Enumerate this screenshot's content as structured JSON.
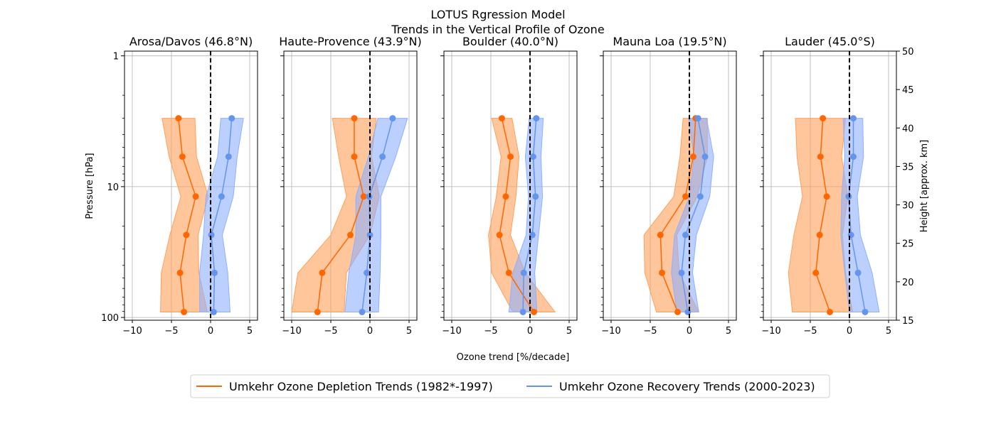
{
  "colors": {
    "depletion_line": "#ff6600",
    "depletion_band": "#ffa05a",
    "recovery_line": "#6495ed",
    "recovery_band": "#8fb0ff",
    "grid": "#b0b0b0",
    "zero_line": "#000000"
  },
  "chart_data": {
    "type": "line",
    "title_line1": "LOTUS Rgression Model",
    "title_line2": "Trends in the Vertical Profile of Ozone",
    "xlabel": "Ozone trend [%/decade]",
    "ylabel_left": "Pressure [hPa]",
    "ylabel_right": "Height [approx. km]",
    "xlim": [
      -11,
      6
    ],
    "xticks": [
      -10,
      -5,
      0,
      5
    ],
    "xtick_labels": [
      "−10",
      "−5",
      "0",
      "5"
    ],
    "y_scale": "log",
    "ylim_hpa": [
      105,
      0.92
    ],
    "yticks_hpa": [
      1,
      10,
      100
    ],
    "ytick_labels": [
      "1",
      "10",
      "100"
    ],
    "right_axis_km_ticks": [
      15,
      20,
      25,
      30,
      35,
      40,
      45,
      50
    ],
    "levels_hpa": [
      3.0,
      5.9,
      11.9,
      23.4,
      45.6,
      90.9
    ],
    "legend": {
      "depletion": "Umkehr Ozone Depletion Trends (1982*-1997)",
      "recovery": "Umkehr Ozone Recovery Trends (2000-2023)"
    },
    "stations": [
      {
        "name": "Arosa/Davos (46.8°N)",
        "depletion": {
          "values": [
            -4.1,
            -3.6,
            -1.9,
            -3.1,
            -3.9,
            -3.4
          ],
          "low": [
            -6.2,
            -5.3,
            -3.8,
            -5.2,
            -6.3,
            -6.4
          ],
          "high": [
            -2.0,
            -1.8,
            -0.3,
            -1.6,
            -1.5,
            -0.4
          ]
        },
        "recovery": {
          "values": [
            2.7,
            2.3,
            1.4,
            0.1,
            0.5,
            0.4
          ],
          "low": [
            1.3,
            0.9,
            -0.6,
            -0.9,
            -1.4,
            -1.4
          ],
          "high": [
            4.2,
            3.4,
            2.9,
            1.5,
            2.2,
            2.5
          ]
        }
      },
      {
        "name": "Haute-Provence (43.9°N)",
        "depletion": {
          "values": [
            -2.0,
            -2.0,
            -0.8,
            -2.5,
            -6.1,
            -6.7
          ],
          "low": [
            -4.8,
            -4.0,
            -3.0,
            -5.0,
            -9.2,
            -10.0
          ],
          "high": [
            0.8,
            0.2,
            1.2,
            0.0,
            -3.0,
            -3.3
          ]
        },
        "recovery": {
          "values": [
            2.9,
            1.6,
            -0.1,
            0.0,
            -0.4,
            -1.0
          ],
          "low": [
            1.0,
            -0.2,
            -1.8,
            -1.8,
            -2.7,
            -3.2
          ],
          "high": [
            4.8,
            3.3,
            1.4,
            1.4,
            1.3,
            1.1
          ]
        }
      },
      {
        "name": "Boulder (40.0°N)",
        "depletion": {
          "values": [
            -3.6,
            -2.5,
            -3.1,
            -3.9,
            -2.7,
            0.5
          ],
          "low": [
            -4.9,
            -3.7,
            -4.3,
            -5.3,
            -4.9,
            -2.2
          ],
          "high": [
            -2.3,
            -1.4,
            -1.8,
            -2.5,
            -0.6,
            3.2
          ]
        },
        "recovery": {
          "values": [
            0.8,
            0.4,
            0.7,
            0.3,
            -0.8,
            -0.9
          ],
          "low": [
            -0.1,
            -0.6,
            -0.2,
            -0.5,
            -2.2,
            -2.7
          ],
          "high": [
            1.7,
            1.4,
            1.6,
            1.1,
            0.6,
            0.9
          ]
        }
      },
      {
        "name": "Mauna Loa (19.5°N)",
        "depletion": {
          "values": [
            0.8,
            0.5,
            -0.5,
            -3.7,
            -3.5,
            -1.5
          ],
          "low": [
            -0.8,
            -1.2,
            -2.0,
            -5.8,
            -5.7,
            -4.2
          ],
          "high": [
            2.3,
            2.3,
            1.0,
            -1.6,
            -1.3,
            1.2
          ]
        },
        "recovery": {
          "values": [
            1.1,
            2.0,
            1.4,
            -0.5,
            -1.0,
            -0.2
          ],
          "low": [
            -0.1,
            0.6,
            0.0,
            -1.9,
            -2.3,
            -1.6
          ],
          "high": [
            2.2,
            3.1,
            2.6,
            0.9,
            0.4,
            1.2
          ]
        }
      },
      {
        "name": "Lauder (45.0°S)",
        "depletion": {
          "values": [
            -3.4,
            -3.7,
            -2.9,
            -3.8,
            -4.3,
            -2.5
          ],
          "low": [
            -6.9,
            -6.7,
            -6.0,
            -7.1,
            -7.8,
            -7.3
          ],
          "high": [
            -0.5,
            -1.0,
            -0.2,
            -0.9,
            -0.5,
            0.4
          ]
        },
        "recovery": {
          "values": [
            0.5,
            0.5,
            -0.1,
            0.2,
            1.1,
            2.0
          ],
          "low": [
            -0.8,
            -0.6,
            -1.0,
            -1.1,
            -0.6,
            0.0
          ],
          "high": [
            1.7,
            1.8,
            1.0,
            1.4,
            2.9,
            3.8
          ]
        }
      }
    ]
  }
}
